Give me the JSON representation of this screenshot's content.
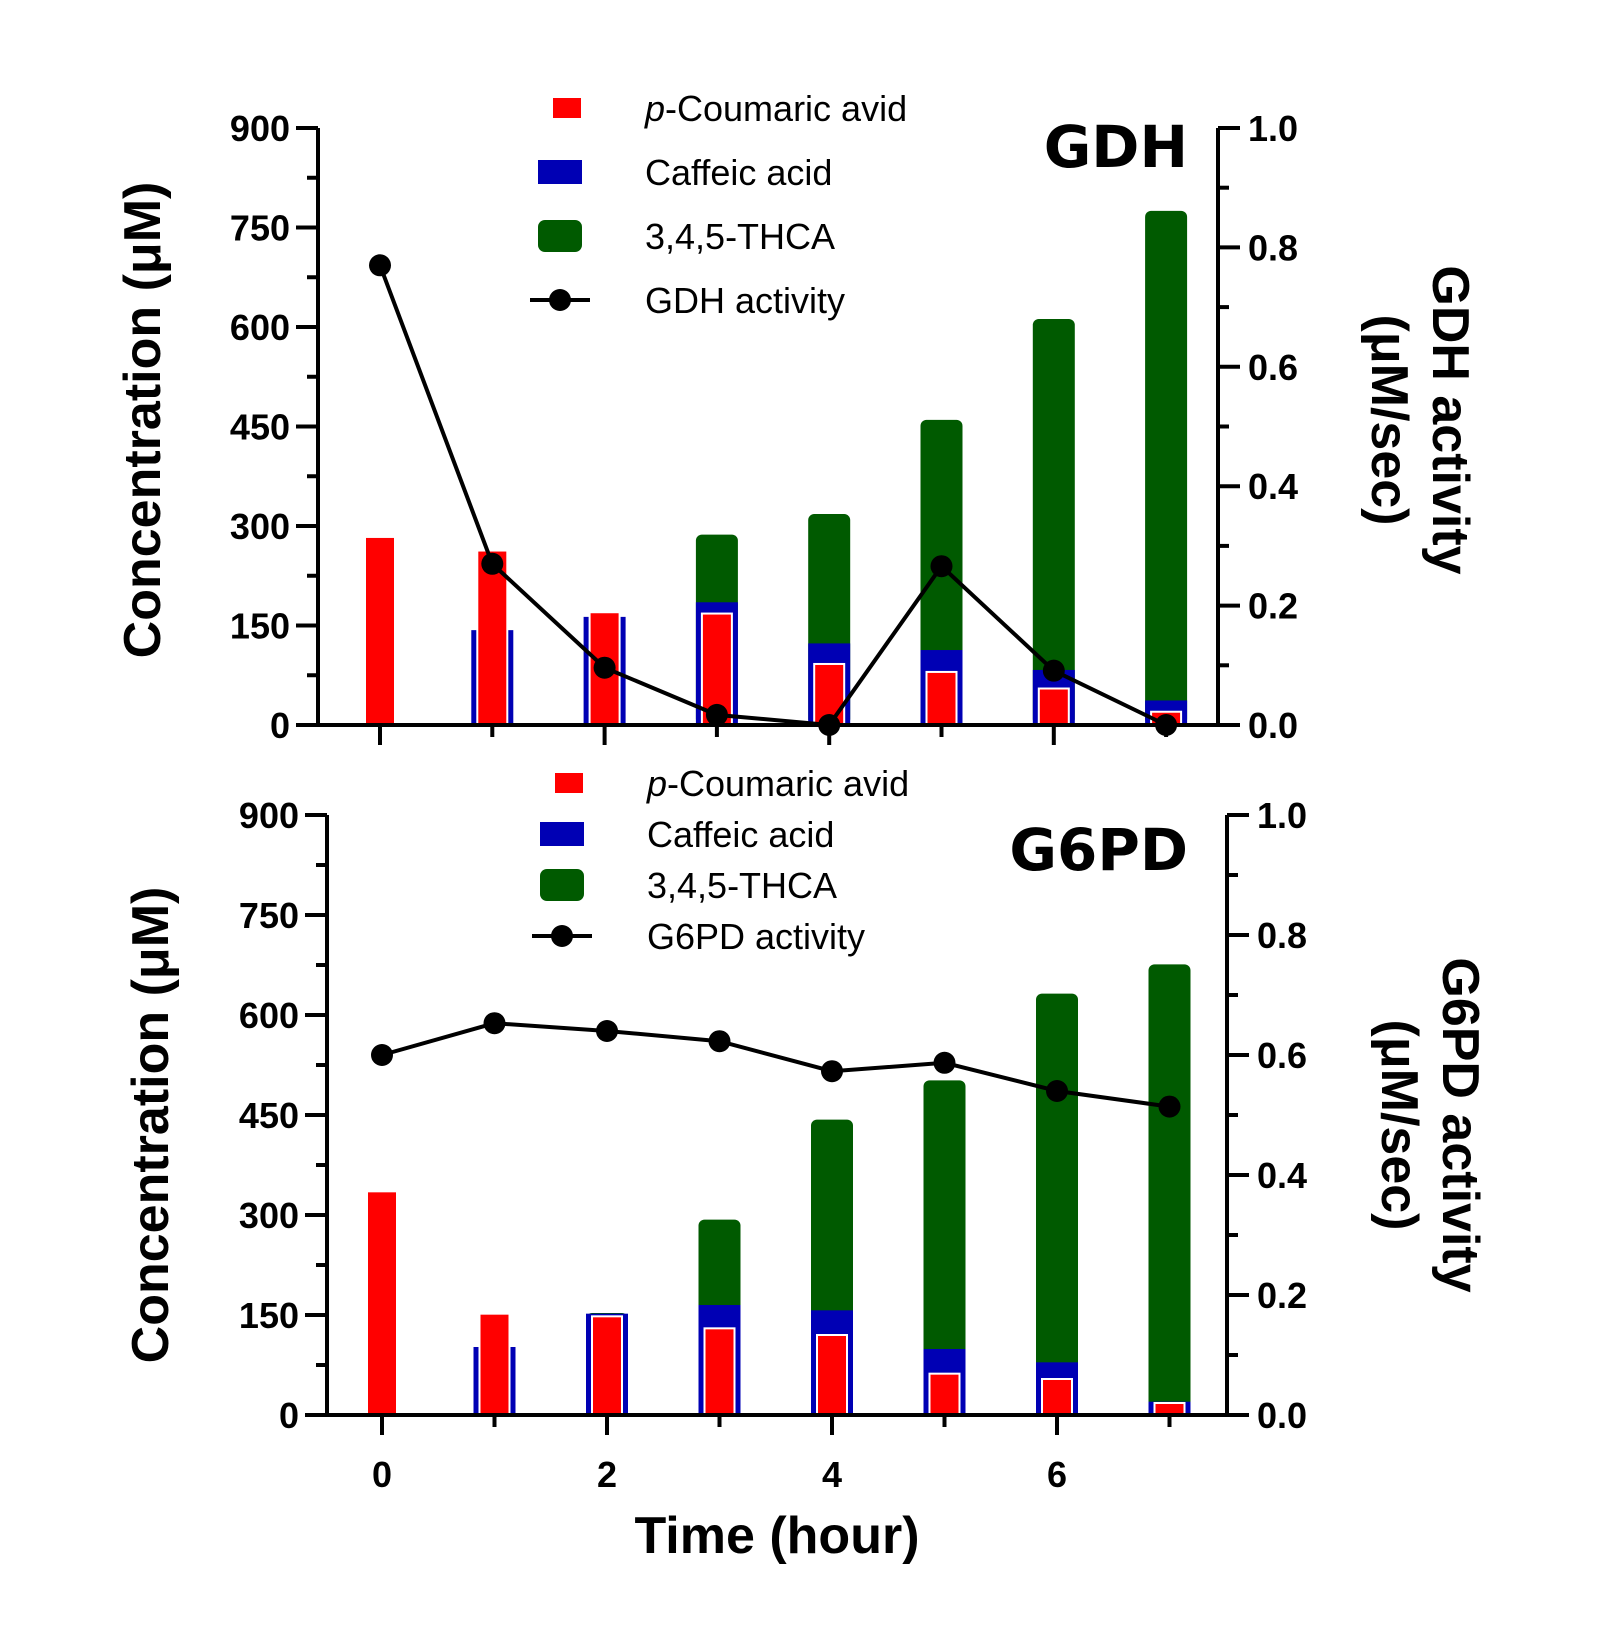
{
  "x_axis": {
    "title": "Time (hour)",
    "ticks": [
      0,
      2,
      4,
      6
    ],
    "tick_labels": [
      "0",
      "2",
      "4",
      "6"
    ]
  },
  "colors": {
    "p_coumaric": "#ff0000",
    "caffeic": "#0000b4",
    "thca": "#005a00",
    "activity": "#000000"
  },
  "chart_data": [
    {
      "type": "bar",
      "title": "GDH",
      "xlabel": "",
      "ylabel": "Concentration (μM)",
      "y2label_line1": "GDH activity",
      "y2label_line2": "(μM/sec)",
      "ylim": [
        0,
        900
      ],
      "y2lim": [
        0,
        1.0
      ],
      "y_ticks": [
        "0",
        "150",
        "300",
        "450",
        "600",
        "750",
        "900"
      ],
      "y2_ticks": [
        "0.0",
        "0.2",
        "0.4",
        "0.6",
        "0.8",
        "1.0"
      ],
      "x": [
        0,
        1,
        2,
        3,
        4,
        5,
        6,
        7
      ],
      "series": [
        {
          "name": "3,4,5-THCA",
          "values": [
            0,
            0,
            0,
            287,
            318,
            460,
            612,
            775
          ]
        },
        {
          "name": "Caffeic acid",
          "values": [
            0,
            143,
            163,
            185,
            123,
            113,
            83,
            37
          ]
        },
        {
          "name": "p-Coumaric avid",
          "name_italic": "p",
          "name_rest": "-Coumaric avid",
          "values": [
            282,
            263,
            170,
            168,
            92,
            80,
            55,
            20
          ]
        },
        {
          "name": "GDH activity",
          "axis": "right",
          "values": [
            0.77,
            0.27,
            0.096,
            0.017,
            0.0,
            0.266,
            0.091,
            0.0
          ]
        }
      ],
      "legend": [
        "p-Coumaric avid",
        "Caffeic acid",
        "3,4,5-THCA",
        "GDH activity"
      ],
      "legend_placement": "top-center"
    },
    {
      "type": "bar",
      "title": "G6PD",
      "xlabel": "Time (hour)",
      "ylabel": "Concentration (μM)",
      "y2label_line1": "G6PD activity",
      "y2label_line2": "(μM/sec)",
      "ylim": [
        0,
        900
      ],
      "y2lim": [
        0,
        1.0
      ],
      "y_ticks": [
        "0",
        "150",
        "300",
        "450",
        "600",
        "750",
        "900"
      ],
      "y2_ticks": [
        "0.0",
        "0.2",
        "0.4",
        "0.6",
        "0.8",
        "1.0"
      ],
      "x": [
        0,
        1,
        2,
        3,
        4,
        5,
        6,
        7
      ],
      "series": [
        {
          "name": "3,4,5-THCA",
          "values": [
            0,
            0,
            153,
            293,
            443,
            502,
            632,
            676
          ]
        },
        {
          "name": "Caffeic acid",
          "values": [
            0,
            102,
            152,
            165,
            157,
            99,
            79,
            20
          ]
        },
        {
          "name": "p-Coumaric avid",
          "name_italic": "p",
          "name_rest": "-Coumaric avid",
          "values": [
            334,
            152,
            148,
            130,
            120,
            62,
            54,
            18
          ]
        },
        {
          "name": "G6PD activity",
          "axis": "right",
          "values": [
            0.6,
            0.653,
            0.64,
            0.623,
            0.573,
            0.587,
            0.54,
            0.514
          ]
        }
      ],
      "legend": [
        "p-Coumaric avid",
        "Caffeic acid",
        "3,4,5-THCA",
        "G6PD activity"
      ],
      "legend_placement": "top-center"
    }
  ]
}
